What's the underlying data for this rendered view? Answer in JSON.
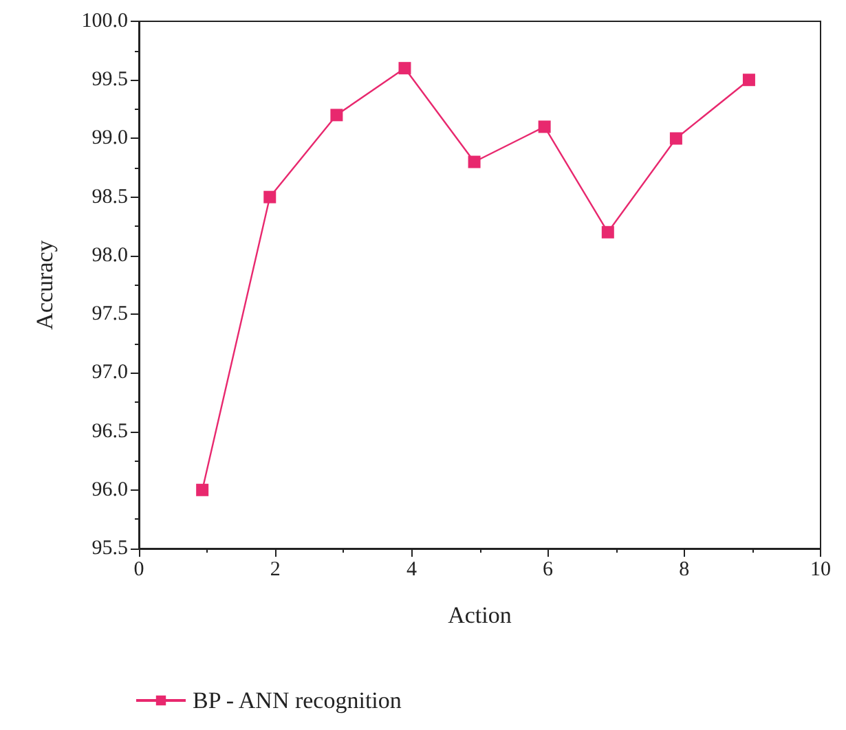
{
  "chart_data": {
    "type": "line",
    "xlabel": "Action",
    "ylabel": "Accuracy",
    "x": [
      0.93,
      1.92,
      2.9,
      3.9,
      4.92,
      5.95,
      6.88,
      7.88,
      8.95
    ],
    "series": [
      {
        "name": "BP - ANN recognition",
        "color": "#e8286e",
        "values": [
          96.0,
          98.5,
          99.2,
          99.6,
          98.8,
          99.1,
          98.2,
          99.0,
          99.5
        ]
      }
    ],
    "xlim": [
      0,
      10
    ],
    "xticks": [
      0,
      2,
      4,
      6,
      8,
      10
    ],
    "ylim": [
      95.5,
      100
    ],
    "yticks": [
      95.5,
      {
        "value": 96,
        "label": "96.0"
      },
      96.5,
      {
        "value": 97,
        "label": "97.0"
      },
      97.5,
      {
        "value": 98,
        "label": "98.0"
      },
      98.5,
      {
        "value": 99,
        "label": "99.0"
      },
      99.5,
      {
        "value": 100,
        "label": "100.0"
      }
    ],
    "marker": "square",
    "line_style": "solid",
    "grid": false,
    "legend": "bottom"
  }
}
